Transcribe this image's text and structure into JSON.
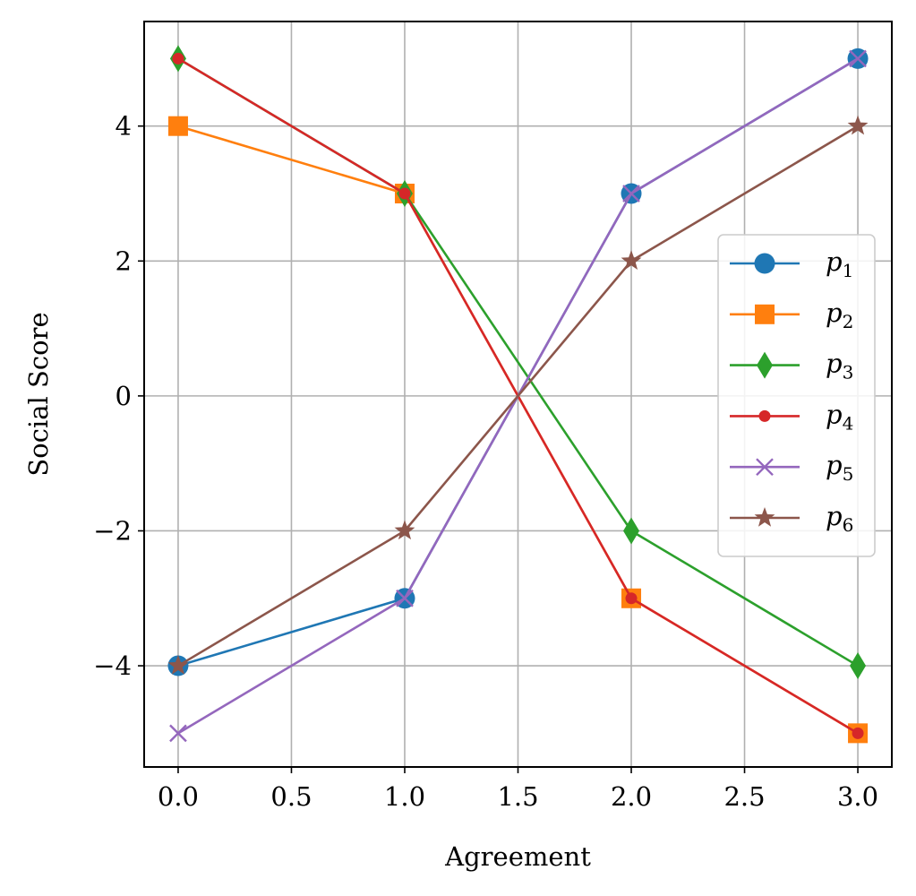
{
  "chart_data": {
    "type": "line",
    "title": "",
    "xlabel": "Agreement",
    "ylabel": "Social Score",
    "xlim": [
      -0.15,
      3.15
    ],
    "ylim": [
      -5.5,
      5.55
    ],
    "xticks": [
      0.0,
      0.5,
      1.0,
      1.5,
      2.0,
      2.5,
      3.0
    ],
    "xtick_labels": [
      "0.0",
      "0.5",
      "1.0",
      "1.5",
      "2.0",
      "2.5",
      "3.0"
    ],
    "yticks": [
      -4,
      -2,
      0,
      2,
      4
    ],
    "ytick_labels": [
      "−4",
      "−2",
      "0",
      "2",
      "4"
    ],
    "grid": true,
    "legend_position": "center-right",
    "x": [
      0,
      1,
      2,
      3
    ],
    "series": [
      {
        "name": "p",
        "subscript": "1",
        "values": [
          -4,
          -3,
          3,
          5
        ],
        "color": "#1f77b4",
        "marker": "circle"
      },
      {
        "name": "p",
        "subscript": "2",
        "values": [
          4,
          3,
          -3,
          -5
        ],
        "color": "#ff7f0e",
        "marker": "square"
      },
      {
        "name": "p",
        "subscript": "3",
        "values": [
          5,
          3,
          -2,
          -4
        ],
        "color": "#2ca02c",
        "marker": "diamond"
      },
      {
        "name": "p",
        "subscript": "4",
        "values": [
          5,
          3,
          -3,
          -5
        ],
        "color": "#d62728",
        "marker": "point"
      },
      {
        "name": "p",
        "subscript": "5",
        "values": [
          -5,
          -3,
          3,
          5
        ],
        "color": "#9467bd",
        "marker": "x"
      },
      {
        "name": "p",
        "subscript": "6",
        "values": [
          -4,
          -2,
          2,
          4
        ],
        "color": "#8c564b",
        "marker": "star"
      }
    ]
  }
}
